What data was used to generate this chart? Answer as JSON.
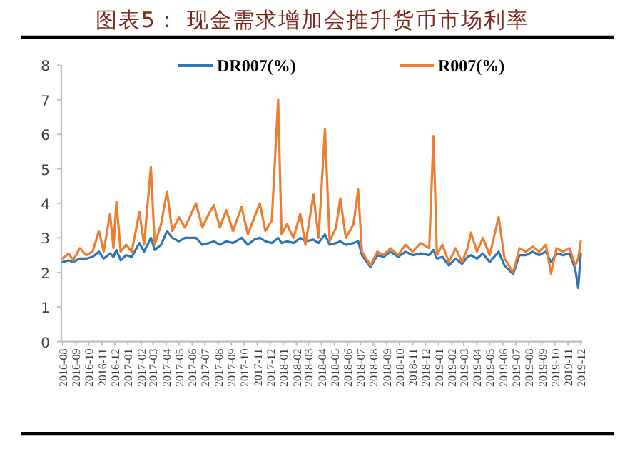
{
  "chart_data": {
    "type": "line",
    "title": "图表5： 现金需求增加会推升货币市场利率",
    "x": [
      "2016-08-01",
      "2016-08-15",
      "2016-08-25",
      "2016-09-10",
      "2016-09-25",
      "2016-10-10",
      "2016-10-25",
      "2016-11-05",
      "2016-11-20",
      "2016-11-28",
      "2016-12-05",
      "2016-12-15",
      "2016-12-28",
      "2017-01-10",
      "2017-01-28",
      "2017-02-08",
      "2017-02-24",
      "2017-03-05",
      "2017-03-20",
      "2017-04-03",
      "2017-04-15",
      "2017-05-01",
      "2017-05-15",
      "2017-06-10",
      "2017-06-25",
      "2017-07-10",
      "2017-07-22",
      "2017-08-05",
      "2017-08-20",
      "2017-09-05",
      "2017-09-25",
      "2017-10-10",
      "2017-10-25",
      "2017-11-07",
      "2017-11-20",
      "2017-12-05",
      "2017-12-20",
      "2017-12-28",
      "2018-01-10",
      "2018-01-25",
      "2018-02-10",
      "2018-02-22",
      "2018-03-13",
      "2018-03-25",
      "2018-04-09",
      "2018-04-20",
      "2018-05-05",
      "2018-05-15",
      "2018-05-28",
      "2018-06-15",
      "2018-06-26",
      "2018-07-05",
      "2018-07-25",
      "2018-08-10",
      "2018-08-25",
      "2018-09-10",
      "2018-09-28",
      "2018-10-15",
      "2018-11-01",
      "2018-11-20",
      "2018-12-10",
      "2018-12-20",
      "2018-12-28",
      "2019-01-10",
      "2019-01-25",
      "2019-02-10",
      "2019-02-25",
      "2019-03-10",
      "2019-03-18",
      "2019-04-01",
      "2019-04-15",
      "2019-05-01",
      "2019-05-22",
      "2019-06-05",
      "2019-06-25",
      "2019-07-10",
      "2019-07-25",
      "2019-08-10",
      "2019-08-25",
      "2019-09-10",
      "2019-09-22",
      "2019-10-05",
      "2019-10-20",
      "2019-11-05",
      "2019-11-18",
      "2019-11-25",
      "2019-12-01"
    ],
    "series": [
      {
        "name": "DR007(%)",
        "color": "#2e75b6",
        "values": [
          2.3,
          2.35,
          2.3,
          2.4,
          2.4,
          2.45,
          2.6,
          2.4,
          2.55,
          2.45,
          2.65,
          2.35,
          2.5,
          2.45,
          2.85,
          2.6,
          3.0,
          2.65,
          2.8,
          3.2,
          3.0,
          2.9,
          3.0,
          3.0,
          2.8,
          2.85,
          2.9,
          2.8,
          2.9,
          2.85,
          3.0,
          2.8,
          2.95,
          3.0,
          2.9,
          2.85,
          3.0,
          2.85,
          2.9,
          2.85,
          3.0,
          2.9,
          2.95,
          2.85,
          3.1,
          2.8,
          2.85,
          2.9,
          2.8,
          2.85,
          2.9,
          2.5,
          2.15,
          2.5,
          2.45,
          2.6,
          2.45,
          2.6,
          2.5,
          2.55,
          2.5,
          2.65,
          2.4,
          2.45,
          2.2,
          2.4,
          2.25,
          2.45,
          2.5,
          2.4,
          2.55,
          2.3,
          2.6,
          2.2,
          1.95,
          2.5,
          2.5,
          2.6,
          2.5,
          2.6,
          2.3,
          2.55,
          2.5,
          2.55,
          2.1,
          1.55,
          2.55
        ]
      },
      {
        "name": "R007(%)",
        "color": "#ed7d31",
        "values": [
          2.4,
          2.55,
          2.35,
          2.7,
          2.5,
          2.6,
          3.2,
          2.6,
          3.7,
          2.7,
          4.05,
          2.6,
          2.8,
          2.6,
          3.75,
          2.8,
          5.05,
          2.8,
          3.4,
          4.35,
          3.2,
          3.6,
          3.3,
          4.0,
          3.3,
          3.7,
          3.95,
          3.3,
          3.8,
          3.2,
          3.9,
          3.1,
          3.6,
          4.0,
          3.2,
          3.5,
          7.0,
          3.1,
          3.4,
          3.0,
          3.7,
          2.8,
          4.25,
          3.0,
          6.15,
          2.9,
          3.3,
          4.15,
          3.0,
          3.4,
          4.4,
          2.6,
          2.2,
          2.6,
          2.5,
          2.7,
          2.5,
          2.8,
          2.6,
          2.85,
          2.7,
          5.95,
          2.5,
          2.8,
          2.3,
          2.7,
          2.3,
          2.7,
          3.15,
          2.6,
          3.0,
          2.5,
          3.6,
          2.4,
          2.0,
          2.7,
          2.6,
          2.75,
          2.6,
          2.8,
          1.97,
          2.7,
          2.6,
          2.7,
          2.2,
          2.4,
          2.9
        ]
      }
    ],
    "xlim": [
      "2016-08-01",
      "2019-12-01"
    ],
    "xticks": [
      "2016-08",
      "2016-09",
      "2016-10",
      "2016-11",
      "2016-12",
      "2017-01",
      "2017-02",
      "2017-03",
      "2017-04",
      "2017-05",
      "2017-06",
      "2017-07",
      "2017-08",
      "2017-09",
      "2017-10",
      "2017-11",
      "2017-12",
      "2018-01",
      "2018-02",
      "2018-03",
      "2018-04",
      "2018-05",
      "2018-06",
      "2018-07",
      "2018-08",
      "2018-09",
      "2018-10",
      "2018-11",
      "2018-12",
      "2019-01",
      "2019-02",
      "2019-03",
      "2019-04",
      "2019-05",
      "2019-06",
      "2019-07",
      "2019-08",
      "2019-09",
      "2019-10",
      "2019-11",
      "2019-12"
    ],
    "ylim": [
      0,
      8
    ],
    "yticks": [
      0,
      1,
      2,
      3,
      4,
      5,
      6,
      7,
      8
    ],
    "grid": false,
    "legend": "top",
    "marker": "none",
    "line_style": "solid"
  }
}
